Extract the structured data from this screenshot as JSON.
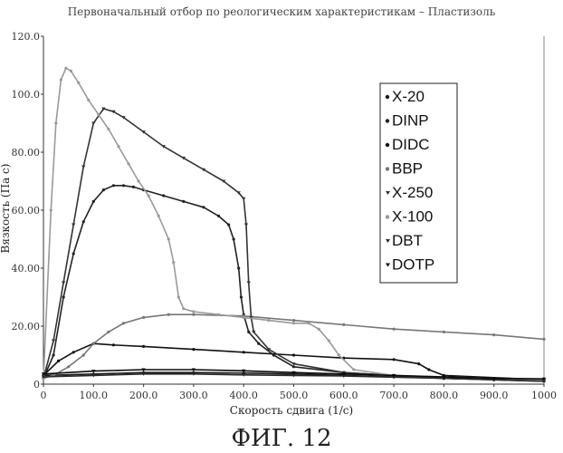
{
  "chart_data": {
    "type": "line",
    "title": "Первоначальный отбор по реологическим характеристикам – Пластизоль",
    "xlabel": "Скорость сдвига (1/с)",
    "ylabel": "Вязкость (Па с)",
    "xlim": [
      0,
      1000
    ],
    "ylim": [
      0,
      120
    ],
    "x_ticks": [
      0,
      100,
      200,
      300,
      400,
      500,
      600,
      700,
      800,
      900,
      1000
    ],
    "x_tick_labels": [
      "0",
      "100.0",
      "200.0",
      "300.0",
      "400.0",
      "500.0",
      "600.0",
      "700.0",
      "800.0",
      "900.0",
      "1000"
    ],
    "y_ticks": [
      0,
      20,
      40,
      60,
      80,
      100,
      120
    ],
    "y_tick_labels": [
      "0",
      "20.00",
      "40.00",
      "60.00",
      "80.00",
      "100.0",
      "120.0"
    ],
    "grid": false,
    "legend_position": "top-right",
    "caption": "ФИГ. 12",
    "series": [
      {
        "name": "X-20",
        "color": "#1a1a1a",
        "marker": "dot",
        "points": [
          [
            0,
            3
          ],
          [
            100,
            3.5
          ],
          [
            200,
            4
          ],
          [
            300,
            4
          ],
          [
            400,
            3.8
          ],
          [
            500,
            3.5
          ],
          [
            600,
            3
          ],
          [
            700,
            2.5
          ],
          [
            800,
            2
          ],
          [
            900,
            1.5
          ],
          [
            1000,
            1
          ]
        ]
      },
      {
        "name": "DINP",
        "color": "#222222",
        "marker": "dot",
        "points": [
          [
            0,
            2
          ],
          [
            20,
            10
          ],
          [
            40,
            30
          ],
          [
            60,
            45
          ],
          [
            80,
            56
          ],
          [
            100,
            63
          ],
          [
            120,
            67
          ],
          [
            140,
            68.5
          ],
          [
            160,
            68.5
          ],
          [
            180,
            68
          ],
          [
            200,
            67
          ],
          [
            240,
            65
          ],
          [
            280,
            63
          ],
          [
            320,
            61
          ],
          [
            350,
            58
          ],
          [
            370,
            55
          ],
          [
            380,
            50
          ],
          [
            390,
            40
          ],
          [
            395,
            30
          ],
          [
            400,
            24
          ],
          [
            410,
            18
          ],
          [
            430,
            14
          ],
          [
            460,
            10
          ],
          [
            500,
            6
          ],
          [
            600,
            4
          ],
          [
            800,
            2
          ],
          [
            1000,
            1.5
          ]
        ]
      },
      {
        "name": "DIDC",
        "color": "#111111",
        "marker": "dot",
        "points": [
          [
            0,
            3
          ],
          [
            30,
            8
          ],
          [
            60,
            11
          ],
          [
            100,
            14
          ],
          [
            140,
            13.5
          ],
          [
            200,
            13
          ],
          [
            300,
            12
          ],
          [
            400,
            11
          ],
          [
            500,
            10
          ],
          [
            600,
            9
          ],
          [
            700,
            8.5
          ],
          [
            750,
            7
          ],
          [
            770,
            5
          ],
          [
            800,
            3
          ],
          [
            1000,
            1.5
          ]
        ]
      },
      {
        "name": "BBP",
        "color": "#777777",
        "marker": "dot",
        "points": [
          [
            0,
            2
          ],
          [
            20,
            3
          ],
          [
            50,
            6
          ],
          [
            80,
            10
          ],
          [
            100,
            14
          ],
          [
            130,
            18
          ],
          [
            160,
            21
          ],
          [
            200,
            23
          ],
          [
            250,
            24
          ],
          [
            300,
            24
          ],
          [
            400,
            23.5
          ],
          [
            500,
            22
          ],
          [
            600,
            20.5
          ],
          [
            700,
            19
          ],
          [
            800,
            18
          ],
          [
            900,
            17
          ],
          [
            1000,
            15.5
          ]
        ]
      },
      {
        "name": "X-250",
        "color": "#333333",
        "marker": "tri",
        "points": [
          [
            0,
            2
          ],
          [
            20,
            15
          ],
          [
            40,
            35
          ],
          [
            60,
            55
          ],
          [
            80,
            75
          ],
          [
            100,
            90
          ],
          [
            120,
            95
          ],
          [
            140,
            94
          ],
          [
            160,
            92
          ],
          [
            200,
            87
          ],
          [
            240,
            82
          ],
          [
            280,
            78
          ],
          [
            320,
            74
          ],
          [
            360,
            70
          ],
          [
            390,
            66
          ],
          [
            400,
            64
          ],
          [
            405,
            55
          ],
          [
            410,
            35
          ],
          [
            415,
            23
          ],
          [
            420,
            18
          ],
          [
            450,
            12
          ],
          [
            500,
            7
          ],
          [
            600,
            4
          ],
          [
            800,
            2
          ],
          [
            1000,
            1.5
          ]
        ]
      },
      {
        "name": "X-100",
        "color": "#9a9a9a",
        "marker": "dot",
        "points": [
          [
            0,
            2
          ],
          [
            15,
            60
          ],
          [
            25,
            90
          ],
          [
            35,
            105
          ],
          [
            45,
            109
          ],
          [
            55,
            108
          ],
          [
            70,
            104
          ],
          [
            90,
            98
          ],
          [
            110,
            93
          ],
          [
            130,
            88
          ],
          [
            150,
            82
          ],
          [
            170,
            76
          ],
          [
            190,
            70
          ],
          [
            210,
            65
          ],
          [
            230,
            58
          ],
          [
            250,
            50
          ],
          [
            260,
            42
          ],
          [
            270,
            30
          ],
          [
            280,
            26
          ],
          [
            300,
            25
          ],
          [
            350,
            24
          ],
          [
            400,
            23
          ],
          [
            450,
            22
          ],
          [
            500,
            21
          ],
          [
            530,
            21
          ],
          [
            550,
            19
          ],
          [
            570,
            15
          ],
          [
            590,
            10
          ],
          [
            620,
            5
          ],
          [
            700,
            3
          ],
          [
            900,
            2
          ],
          [
            1000,
            1.5
          ]
        ]
      },
      {
        "name": "DBT",
        "color": "#2a2a2a",
        "marker": "tri",
        "points": [
          [
            0,
            2.5
          ],
          [
            100,
            3
          ],
          [
            200,
            3.5
          ],
          [
            300,
            3.5
          ],
          [
            400,
            3.2
          ],
          [
            500,
            3
          ],
          [
            600,
            2.8
          ],
          [
            700,
            2.4
          ],
          [
            800,
            2
          ],
          [
            900,
            1.5
          ],
          [
            1000,
            1
          ]
        ]
      },
      {
        "name": "DOTP",
        "color": "#0a0a0a",
        "marker": "tri",
        "points": [
          [
            0,
            3.5
          ],
          [
            100,
            4.5
          ],
          [
            200,
            5
          ],
          [
            300,
            5
          ],
          [
            400,
            4.6
          ],
          [
            500,
            4
          ],
          [
            600,
            3.5
          ],
          [
            700,
            3
          ],
          [
            800,
            2.5
          ],
          [
            900,
            2
          ],
          [
            1000,
            1.8
          ]
        ]
      }
    ]
  }
}
